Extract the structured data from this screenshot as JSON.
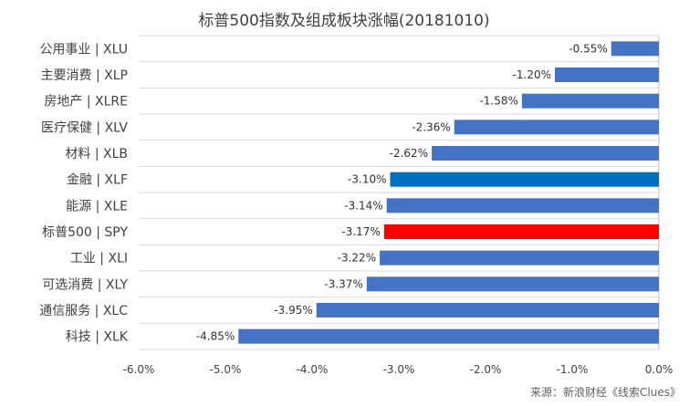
{
  "chart_data": {
    "type": "bar",
    "orientation": "horizontal",
    "title": "标普500指数及组成板块涨幅(20181010)",
    "categories": [
      "公用事业 | XLU",
      "主要消费 | XLP",
      "房地产 | XLRE",
      "医疗保健 | XLV",
      "材料 | XLB",
      "金融 | XLF",
      "能源 | XLE",
      "标普500 | SPY",
      "工业 | XLI",
      "可选消费 | XLY",
      "通信服务 | XLC",
      "科技 | XLK"
    ],
    "values": [
      -0.55,
      -1.2,
      -1.58,
      -2.36,
      -2.62,
      -3.1,
      -3.14,
      -3.17,
      -3.22,
      -3.37,
      -3.95,
      -4.85
    ],
    "value_labels": [
      "-0.55%",
      "-1.20%",
      "-1.58%",
      "-2.36%",
      "-2.62%",
      "-3.10%",
      "-3.14%",
      "-3.17%",
      "-3.22%",
      "-3.37%",
      "-3.95%",
      "-4.85%"
    ],
    "bar_colors": [
      "#4472c4",
      "#4472c4",
      "#4472c4",
      "#4472c4",
      "#4472c4",
      "#0070c0",
      "#4472c4",
      "#ff0000",
      "#4472c4",
      "#4472c4",
      "#4472c4",
      "#4472c4"
    ],
    "xlim": [
      -6.0,
      0.0
    ],
    "xticks": [
      -6.0,
      -5.0,
      -4.0,
      -3.0,
      -2.0,
      -1.0,
      0.0
    ],
    "xtick_labels": [
      "-6.0%",
      "-5.0%",
      "-4.0%",
      "-3.0%",
      "-2.0%",
      "-1.0%",
      "0.0%"
    ],
    "xlabel": "",
    "ylabel": "",
    "grid": "horizontal-separators",
    "legend": "none",
    "source": "来源：新浪财经《线索Clues》"
  }
}
